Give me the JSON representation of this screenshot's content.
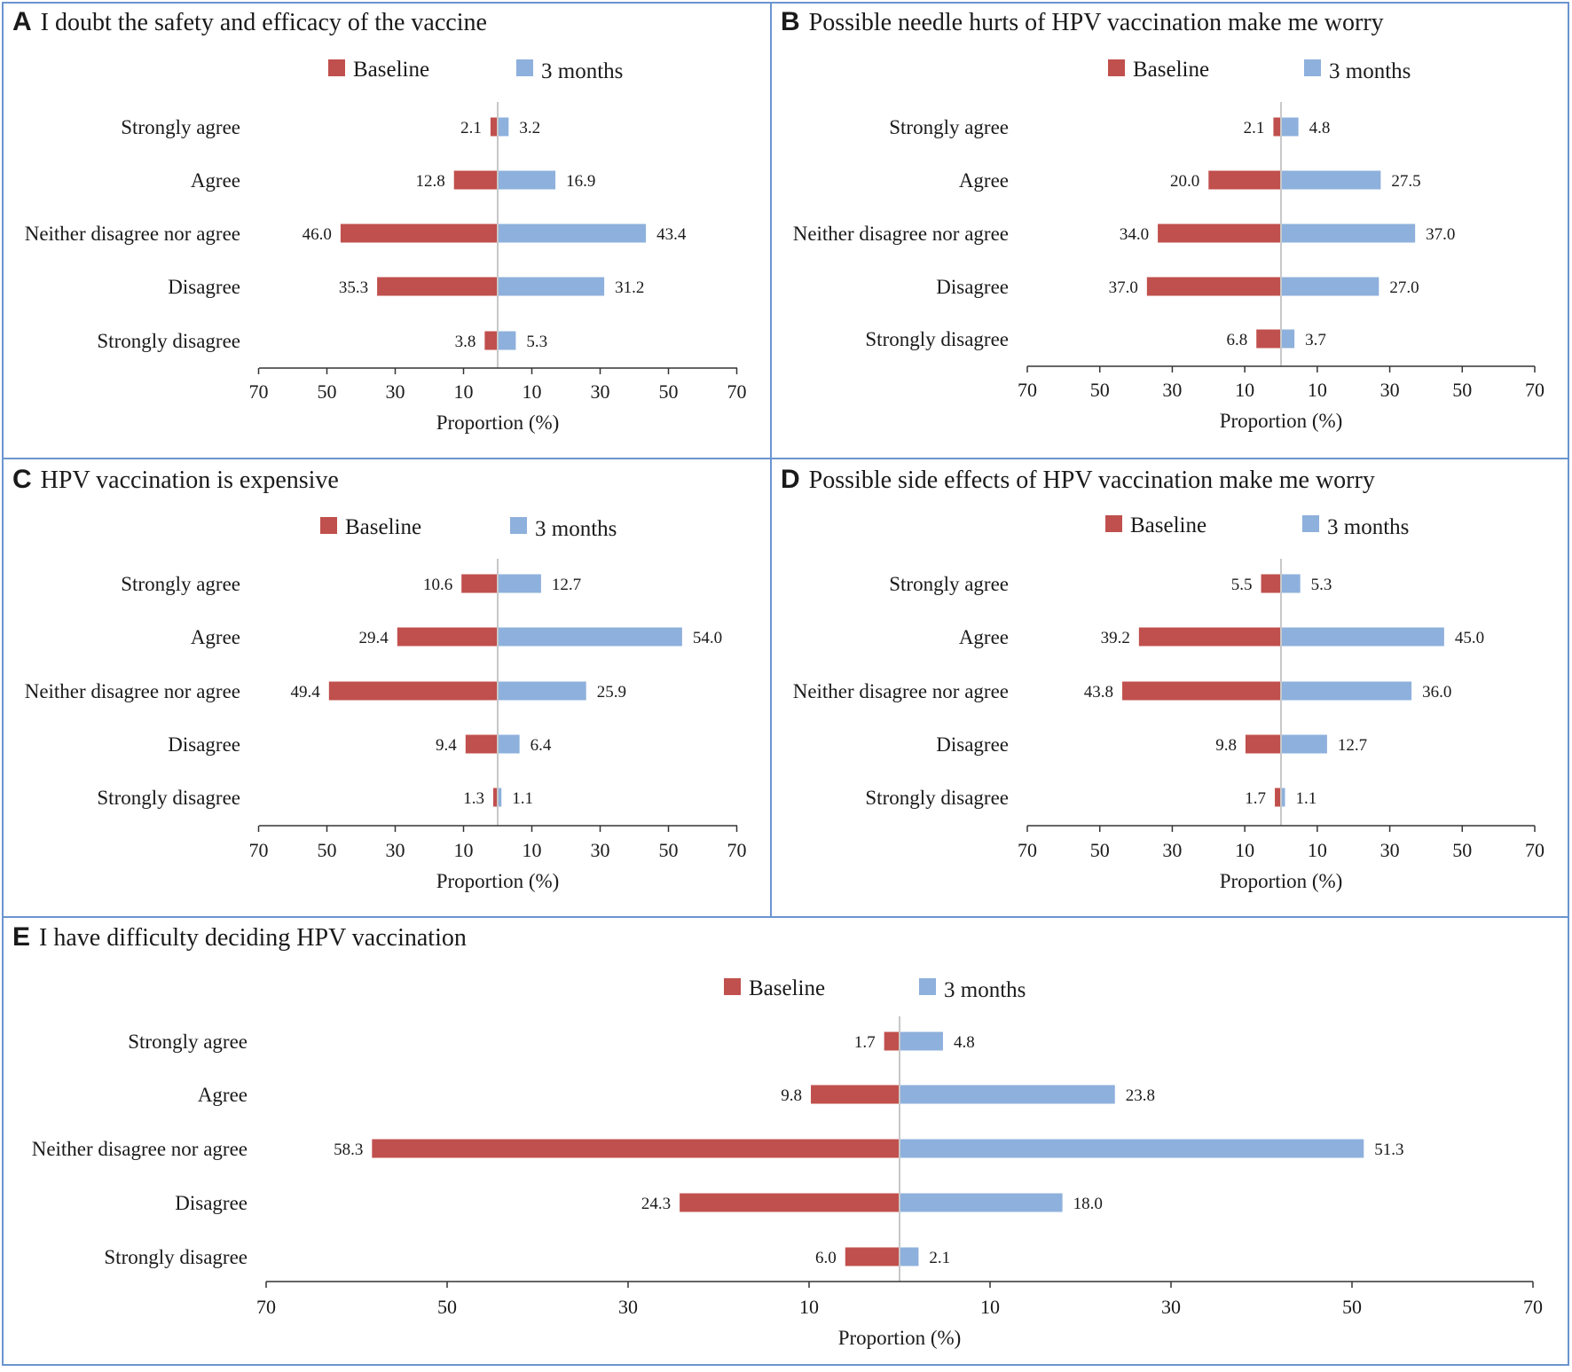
{
  "colors": {
    "baseline": "#c0504d",
    "months3": "#8eb0dc",
    "border": "#6a95cf",
    "center_line": "#c8c8c8",
    "axis": "#333333"
  },
  "legend": {
    "baseline": "Baseline",
    "months3": "3 months"
  },
  "axis_title": "Proportion (%)",
  "tick_labels": [
    "70",
    "50",
    "30",
    "10",
    "10",
    "30",
    "50",
    "70"
  ],
  "chart_data": [
    {
      "type": "bar",
      "letter": "A",
      "title": "I doubt the safety and efficacy of the vaccine",
      "categories": [
        "Strongly agree",
        "Agree",
        "Neither disagree nor agree",
        "Disagree",
        "Strongly disagree"
      ],
      "series": [
        {
          "name": "Baseline",
          "values": [
            2.1,
            12.8,
            46.0,
            35.3,
            3.8
          ]
        },
        {
          "name": "3 months",
          "values": [
            3.2,
            16.9,
            43.4,
            31.2,
            5.3
          ]
        }
      ],
      "xlim": [
        -70,
        70
      ],
      "xlabel": "Proportion (%)"
    },
    {
      "type": "bar",
      "letter": "B",
      "title": "Possible needle hurts of HPV vaccination make me worry",
      "categories": [
        "Strongly agree",
        "Agree",
        "Neither disagree nor agree",
        "Disagree",
        "Strongly disagree"
      ],
      "series": [
        {
          "name": "Baseline",
          "values": [
            2.1,
            20.0,
            34.0,
            37.0,
            6.8
          ]
        },
        {
          "name": "3 months",
          "values": [
            4.8,
            27.5,
            37.0,
            27.0,
            3.7
          ]
        }
      ],
      "xlim": [
        -70,
        70
      ],
      "xlabel": "Proportion (%)"
    },
    {
      "type": "bar",
      "letter": "C",
      "title": "HPV vaccination is expensive",
      "categories": [
        "Strongly agree",
        "Agree",
        "Neither disagree nor agree",
        "Disagree",
        "Strongly disagree"
      ],
      "series": [
        {
          "name": "Baseline",
          "values": [
            10.6,
            29.4,
            49.4,
            9.4,
            1.3
          ]
        },
        {
          "name": "3 months",
          "values": [
            12.7,
            54.0,
            25.9,
            6.4,
            1.1
          ]
        }
      ],
      "xlim": [
        -70,
        70
      ],
      "xlabel": "Proportion (%)"
    },
    {
      "type": "bar",
      "letter": "D",
      "title": "Possible side effects of HPV vaccination make me worry",
      "categories": [
        "Strongly agree",
        "Agree",
        "Neither disagree nor agree",
        "Disagree",
        "Strongly disagree"
      ],
      "series": [
        {
          "name": "Baseline",
          "values": [
            5.5,
            39.2,
            43.8,
            9.8,
            1.7
          ]
        },
        {
          "name": "3 months",
          "values": [
            5.3,
            45.0,
            36.0,
            12.7,
            1.1
          ]
        }
      ],
      "xlim": [
        -70,
        70
      ],
      "xlabel": "Proportion (%)"
    },
    {
      "type": "bar",
      "letter": "E",
      "title": "I have difficulty deciding HPV vaccination",
      "categories": [
        "Strongly agree",
        "Agree",
        "Neither disagree nor agree",
        "Disagree",
        "Strongly disagree"
      ],
      "series": [
        {
          "name": "Baseline",
          "values": [
            1.7,
            9.8,
            58.3,
            24.3,
            6.0
          ]
        },
        {
          "name": "3 months",
          "values": [
            4.8,
            23.8,
            51.3,
            18.0,
            2.1
          ]
        }
      ],
      "xlim": [
        -70,
        70
      ],
      "xlabel": "Proportion (%)"
    }
  ]
}
